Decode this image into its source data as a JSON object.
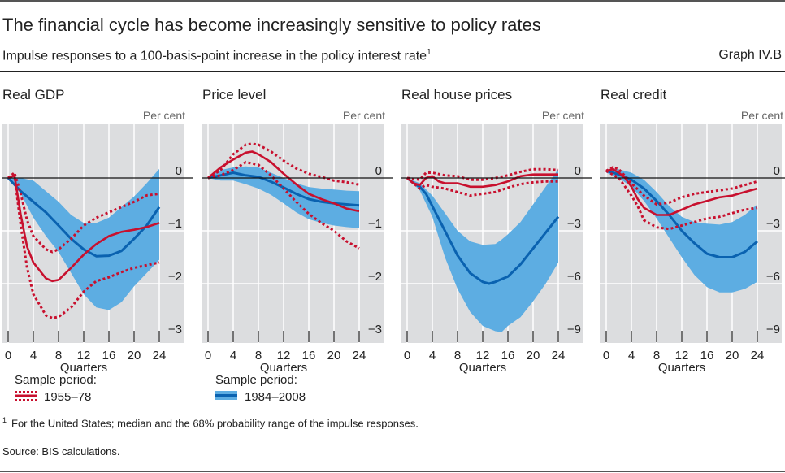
{
  "header": {
    "title": "The financial cycle has become increasingly sensitive to policy rates",
    "subtitle": "Impulse responses to a 100-basis-point increase in the policy interest rate",
    "subtitle_footnote_mark": "1",
    "graph_id": "Graph IV.B"
  },
  "footer": {
    "footnote_mark": "1",
    "footnote": "For the United States; median and the 68% probability range of the impulse responses.",
    "source": "Source: BIS calculations."
  },
  "colors": {
    "early_line": "#c8102e",
    "late_line": "#0a62b0",
    "late_band": "#5dade2",
    "plot_bg": "#dcdddf",
    "grid": "#ffffff"
  },
  "legends": [
    {
      "heading": "Sample period:",
      "label": "1955–78",
      "style": "red-median-with-dotted-range"
    },
    {
      "heading": "Sample period:",
      "label": "1984–2008",
      "style": "blue-median-with-band"
    }
  ],
  "chart_data": [
    {
      "type": "line",
      "title": "Real GDP",
      "ylabel": "Per cent",
      "xlabel": "Quarters",
      "xlim": [
        0,
        24
      ],
      "xticks": [
        0,
        4,
        8,
        12,
        16,
        20,
        24
      ],
      "ylim": [
        -3,
        0.5
      ],
      "yticks": [
        0,
        -1,
        -2,
        -3
      ],
      "ytick_labels": [
        "0",
        "−1",
        "−2",
        "−3"
      ],
      "series": [
        {
          "name": "1984–2008 band",
          "kind": "band",
          "x": [
            0,
            2,
            4,
            6,
            8,
            10,
            12,
            14,
            16,
            18,
            20,
            22,
            24
          ],
          "upper": [
            0,
            0,
            -0.05,
            -0.25,
            -0.45,
            -0.7,
            -0.85,
            -0.85,
            -0.75,
            -0.55,
            -0.35,
            -0.1,
            0.17
          ],
          "lower": [
            0,
            -0.3,
            -0.75,
            -1.1,
            -1.4,
            -1.8,
            -2.2,
            -2.45,
            -2.5,
            -2.35,
            -2.05,
            -1.8,
            -1.55
          ]
        },
        {
          "name": "1984–2008 median",
          "kind": "median",
          "x": [
            0,
            2,
            4,
            6,
            8,
            10,
            12,
            14,
            16,
            18,
            20,
            22,
            24
          ],
          "y": [
            0,
            -0.25,
            -0.45,
            -0.65,
            -0.9,
            -1.15,
            -1.35,
            -1.48,
            -1.47,
            -1.38,
            -1.15,
            -0.9,
            -0.55
          ]
        },
        {
          "name": "1955–78 upper",
          "kind": "dotted",
          "x": [
            0,
            1,
            2,
            3,
            4,
            6,
            7,
            8,
            10,
            12,
            14,
            16,
            18,
            20,
            22,
            24
          ],
          "y": [
            0,
            0.1,
            -0.3,
            -0.8,
            -1.1,
            -1.35,
            -1.4,
            -1.35,
            -1.15,
            -0.9,
            -0.75,
            -0.65,
            -0.55,
            -0.45,
            -0.33,
            -0.3
          ]
        },
        {
          "name": "1955–78 lower",
          "kind": "dotted",
          "x": [
            0,
            1,
            2,
            3,
            4,
            6,
            7,
            8,
            10,
            12,
            14,
            16,
            18,
            20,
            22,
            24
          ],
          "y": [
            0,
            0.05,
            -0.9,
            -1.7,
            -2.2,
            -2.6,
            -2.65,
            -2.63,
            -2.45,
            -2.15,
            -1.95,
            -1.88,
            -1.78,
            -1.7,
            -1.65,
            -1.6
          ]
        },
        {
          "name": "1955–78 median",
          "kind": "median-red",
          "x": [
            0,
            1,
            2,
            3,
            4,
            6,
            7,
            8,
            10,
            12,
            14,
            16,
            18,
            20,
            22,
            24
          ],
          "y": [
            0,
            0.05,
            -0.7,
            -1.3,
            -1.6,
            -1.9,
            -1.95,
            -1.93,
            -1.7,
            -1.45,
            -1.25,
            -1.1,
            -1.02,
            -0.98,
            -0.93,
            -0.85
          ]
        }
      ]
    },
    {
      "type": "line",
      "title": "Price level",
      "ylabel": "Per cent",
      "xlabel": "Quarters",
      "xlim": [
        0,
        24
      ],
      "xticks": [
        0,
        4,
        8,
        12,
        16,
        20,
        24
      ],
      "ylim": [
        -3,
        1
      ],
      "yticks": [
        0,
        -1,
        -2,
        -3
      ],
      "ytick_labels": [
        "0",
        "−1",
        "−2",
        "−3"
      ],
      "series": [
        {
          "name": "1984–2008 band",
          "kind": "band",
          "x": [
            0,
            2,
            4,
            6,
            8,
            10,
            12,
            14,
            16,
            18,
            20,
            22,
            24
          ],
          "upper": [
            0,
            0.15,
            0.2,
            0.22,
            0.2,
            0.1,
            0,
            -0.1,
            -0.17,
            -0.2,
            -0.22,
            -0.24,
            -0.25
          ],
          "lower": [
            0,
            -0.05,
            -0.05,
            -0.12,
            -0.2,
            -0.32,
            -0.48,
            -0.65,
            -0.78,
            -0.85,
            -0.9,
            -0.93,
            -0.95
          ]
        },
        {
          "name": "1984–2008 median",
          "kind": "median",
          "x": [
            0,
            2,
            4,
            6,
            8,
            10,
            12,
            14,
            16,
            18,
            20,
            22,
            24
          ],
          "y": [
            0,
            0.05,
            0.1,
            0.05,
            0.02,
            -0.07,
            -0.18,
            -0.3,
            -0.4,
            -0.45,
            -0.48,
            -0.5,
            -0.52
          ]
        },
        {
          "name": "1955–78 upper",
          "kind": "dotted",
          "x": [
            0,
            2,
            4,
            6,
            7,
            8,
            10,
            12,
            14,
            16,
            18,
            20,
            22,
            24
          ],
          "y": [
            0,
            0.15,
            0.45,
            0.63,
            0.65,
            0.63,
            0.5,
            0.33,
            0.18,
            0.08,
            0.02,
            -0.05,
            -0.08,
            -0.13
          ]
        },
        {
          "name": "1955–78 lower",
          "kind": "dotted",
          "x": [
            0,
            2,
            4,
            6,
            8,
            10,
            12,
            14,
            16,
            18,
            20,
            22,
            24
          ],
          "y": [
            0,
            0.05,
            0.15,
            0.3,
            0.25,
            0.05,
            -0.2,
            -0.45,
            -0.68,
            -0.85,
            -1.0,
            -1.2,
            -1.33
          ]
        },
        {
          "name": "1955–78 median",
          "kind": "median-red",
          "x": [
            0,
            2,
            4,
            6,
            7,
            8,
            10,
            12,
            14,
            16,
            18,
            20,
            22,
            24
          ],
          "y": [
            0,
            0.2,
            0.35,
            0.48,
            0.5,
            0.45,
            0.3,
            0.08,
            -0.12,
            -0.3,
            -0.4,
            -0.48,
            -0.58,
            -0.63
          ]
        }
      ]
    },
    {
      "type": "line",
      "title": "Real house prices",
      "ylabel": "Per cent",
      "xlabel": "Quarters",
      "xlim": [
        0,
        24
      ],
      "xticks": [
        0,
        4,
        8,
        12,
        16,
        20,
        24
      ],
      "ylim": [
        -9,
        1.5
      ],
      "yticks": [
        0,
        -3,
        -6,
        -9
      ],
      "ytick_labels": [
        "0",
        "−3",
        "−6",
        "−9"
      ],
      "series": [
        {
          "name": "1984–2008 band",
          "kind": "band",
          "x": [
            0,
            2,
            4,
            6,
            8,
            10,
            12,
            14,
            15,
            16,
            18,
            20,
            22,
            24
          ],
          "upper": [
            0,
            -0.3,
            -1.0,
            -2.0,
            -3.0,
            -3.6,
            -3.8,
            -3.75,
            -3.5,
            -3.2,
            -2.5,
            -1.5,
            -0.5,
            0.5
          ],
          "lower": [
            0,
            -0.7,
            -2.2,
            -4.5,
            -6.3,
            -7.6,
            -8.4,
            -8.7,
            -8.75,
            -8.4,
            -7.9,
            -7.0,
            -6.0,
            -4.8
          ]
        },
        {
          "name": "1984–2008 median",
          "kind": "median",
          "x": [
            0,
            1,
            2,
            3,
            4,
            6,
            8,
            10,
            12,
            13,
            14,
            16,
            18,
            20,
            22,
            24
          ],
          "y": [
            0,
            -0.3,
            -0.5,
            -0.9,
            -1.6,
            -3.0,
            -4.4,
            -5.4,
            -5.9,
            -6.0,
            -5.9,
            -5.6,
            -4.9,
            -4.0,
            -3.1,
            -2.2
          ]
        },
        {
          "name": "1955–78 upper",
          "kind": "dotted",
          "x": [
            0,
            2,
            3,
            4,
            6,
            8,
            10,
            12,
            14,
            16,
            18,
            20,
            22,
            24
          ],
          "y": [
            0,
            -0.1,
            0.3,
            0.3,
            0.15,
            0.1,
            -0.1,
            -0.1,
            0,
            0.15,
            0.35,
            0.5,
            0.5,
            0.45
          ]
        },
        {
          "name": "1955–78 lower",
          "kind": "dotted",
          "x": [
            0,
            2,
            3,
            4,
            6,
            8,
            10,
            12,
            14,
            16,
            18,
            20,
            22,
            24
          ],
          "y": [
            0,
            -0.6,
            -0.4,
            -0.5,
            -0.6,
            -0.8,
            -1.0,
            -0.9,
            -0.8,
            -0.55,
            -0.35,
            -0.25,
            -0.2,
            -0.2
          ]
        },
        {
          "name": "1955–78 median",
          "kind": "median-red",
          "x": [
            0,
            1,
            2,
            3,
            4,
            5,
            6,
            8,
            10,
            12,
            14,
            16,
            18,
            20,
            22,
            24
          ],
          "y": [
            0,
            -0.3,
            -0.4,
            0,
            0.1,
            -0.2,
            -0.3,
            -0.3,
            -0.5,
            -0.5,
            -0.4,
            -0.2,
            0.1,
            0.2,
            0.2,
            0.2
          ]
        }
      ]
    },
    {
      "type": "line",
      "title": "Real credit",
      "ylabel": "Per cent",
      "xlabel": "Quarters",
      "xlim": [
        0,
        24
      ],
      "xticks": [
        0,
        4,
        8,
        12,
        16,
        20,
        24
      ],
      "ylim": [
        -9,
        1.5
      ],
      "yticks": [
        0,
        -3,
        -6,
        -9
      ],
      "ytick_labels": [
        "0",
        "−3",
        "−6",
        "−9"
      ],
      "series": [
        {
          "name": "1984–2008 band",
          "kind": "band",
          "x": [
            0,
            2,
            4,
            6,
            8,
            10,
            12,
            14,
            16,
            18,
            20,
            22,
            24
          ],
          "upper": [
            0.5,
            0.5,
            0.3,
            -0.1,
            -0.8,
            -1.6,
            -2.2,
            -2.5,
            -2.6,
            -2.65,
            -2.5,
            -2.1,
            -1.5
          ],
          "lower": [
            0.3,
            0,
            -0.5,
            -1.3,
            -2.3,
            -3.4,
            -4.5,
            -5.5,
            -6.2,
            -6.5,
            -6.5,
            -6.3,
            -5.9
          ]
        },
        {
          "name": "1984–2008 median",
          "kind": "median",
          "x": [
            0,
            2,
            4,
            6,
            8,
            10,
            12,
            14,
            16,
            18,
            20,
            22,
            24
          ],
          "y": [
            0.4,
            0.2,
            -0.1,
            -0.6,
            -1.3,
            -2.1,
            -3.0,
            -3.7,
            -4.3,
            -4.5,
            -4.5,
            -4.2,
            -3.6
          ]
        },
        {
          "name": "1955–78 upper",
          "kind": "dotted",
          "x": [
            0,
            1,
            2,
            3,
            4,
            6,
            8,
            10,
            12,
            14,
            16,
            18,
            20,
            22,
            24
          ],
          "y": [
            0.4,
            0.6,
            0.5,
            0.1,
            -0.3,
            -1.0,
            -1.5,
            -1.4,
            -1.1,
            -0.9,
            -0.8,
            -0.7,
            -0.6,
            -0.4,
            -0.2
          ]
        },
        {
          "name": "1955–78 lower",
          "kind": "dotted",
          "x": [
            0,
            1,
            2,
            3,
            4,
            5,
            6,
            8,
            10,
            12,
            14,
            16,
            18,
            20,
            22,
            24
          ],
          "y": [
            0.4,
            0.2,
            0,
            -0.5,
            -1.0,
            -1.6,
            -2.4,
            -2.8,
            -2.9,
            -2.7,
            -2.5,
            -2.3,
            -2.2,
            -2.0,
            -1.8,
            -1.7
          ]
        },
        {
          "name": "1955–78 median",
          "kind": "median-red",
          "x": [
            0,
            1,
            2,
            3,
            4,
            5,
            6,
            8,
            10,
            12,
            14,
            16,
            18,
            20,
            22,
            24
          ],
          "y": [
            0.4,
            0.5,
            0.3,
            0,
            -0.5,
            -1.2,
            -1.7,
            -2.1,
            -2.1,
            -1.8,
            -1.5,
            -1.3,
            -1.1,
            -1.0,
            -0.8,
            -0.6
          ]
        }
      ]
    }
  ]
}
